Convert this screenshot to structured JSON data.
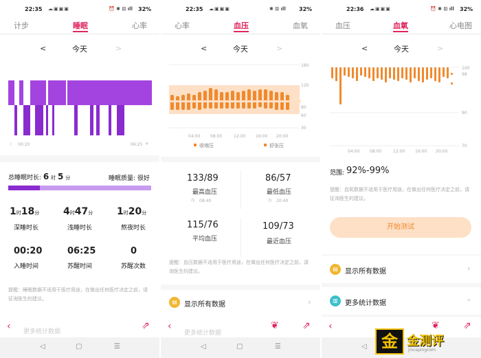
{
  "status": [
    {
      "time": "22:35",
      "battery": "32%"
    },
    {
      "time": "22:35",
      "battery": "32%"
    },
    {
      "time": "22:36",
      "battery": "32%"
    }
  ],
  "panel1": {
    "tabs": [
      "计步",
      "睡眠",
      "心率"
    ],
    "date": "今天",
    "start_time": "00:20",
    "end_time": "06:25",
    "total_label": "总睡眠时长:",
    "total_h": "6",
    "total_h_unit": "时",
    "total_m": "5",
    "total_m_unit": "分",
    "quality_label": "睡眠质量: 很好",
    "stats": [
      {
        "h": "1",
        "hu": "时",
        "m": "18",
        "mu": "分",
        "label": "深睡时长"
      },
      {
        "h": "4",
        "hu": "时",
        "m": "47",
        "mu": "分",
        "label": "浅睡时长"
      },
      {
        "h": "1",
        "hu": "时",
        "m": "20",
        "mu": "分",
        "label": "熬夜时长"
      }
    ],
    "times": [
      {
        "value": "00:20",
        "label": "入睡时间"
      },
      {
        "value": "06:25",
        "label": "苏醒时间"
      },
      {
        "value": "0",
        "label": "苏醒次数"
      }
    ],
    "note": "提醒：睡眠数据不适用于医疗用途，在做出任何医疗决定之前，请征询医生的建议。",
    "more": "更多统计数据"
  },
  "panel2": {
    "tabs": [
      "心率",
      "血压",
      "血氧"
    ],
    "date": "今天",
    "y_ticks": [
      "180",
      "120",
      "80",
      "60",
      "30"
    ],
    "x_ticks": [
      "04:00",
      "08:00",
      "12:00",
      "16:00",
      "20:00"
    ],
    "legend": [
      "收缩压",
      "舒张压"
    ],
    "cells": [
      {
        "value": "133/89",
        "label": "最高血压",
        "time": "08:40"
      },
      {
        "value": "86/57",
        "label": "最低血压",
        "time": "20:40"
      },
      {
        "value": "115/76",
        "label": "平均血压",
        "time": ""
      },
      {
        "value": "109/73",
        "label": "最近血压",
        "time": ""
      }
    ],
    "note": "提醒：血压数据不适用于医疗用途，在做出任何医疗决定之前，请询医生的建议。",
    "show_all": "显示所有数据",
    "more": "更多统计数据"
  },
  "panel3": {
    "tabs": [
      "血压",
      "血氧",
      "心电图"
    ],
    "date": "今天",
    "y_ticks": [
      "100",
      "98",
      "90",
      "70"
    ],
    "x_ticks": [
      "04:00",
      "08:00",
      "12:00",
      "16:00",
      "20:00"
    ],
    "range_label": "范围:",
    "range_value": "92%-99%",
    "note": "提醒：血氧数据不适用于医疗用途，在做出任何医疗决定之前，请征询医生的建议。",
    "start_button": "开始测试",
    "show_all": "显示所有数据",
    "more": "更多统计数据"
  },
  "watermark": {
    "text": "金测评",
    "sub": "jincepingcom"
  },
  "colors": {
    "accent": "#e0245e",
    "sleep": "#a344e0",
    "orange": "#f08a2e",
    "band": "#fde0c6"
  }
}
